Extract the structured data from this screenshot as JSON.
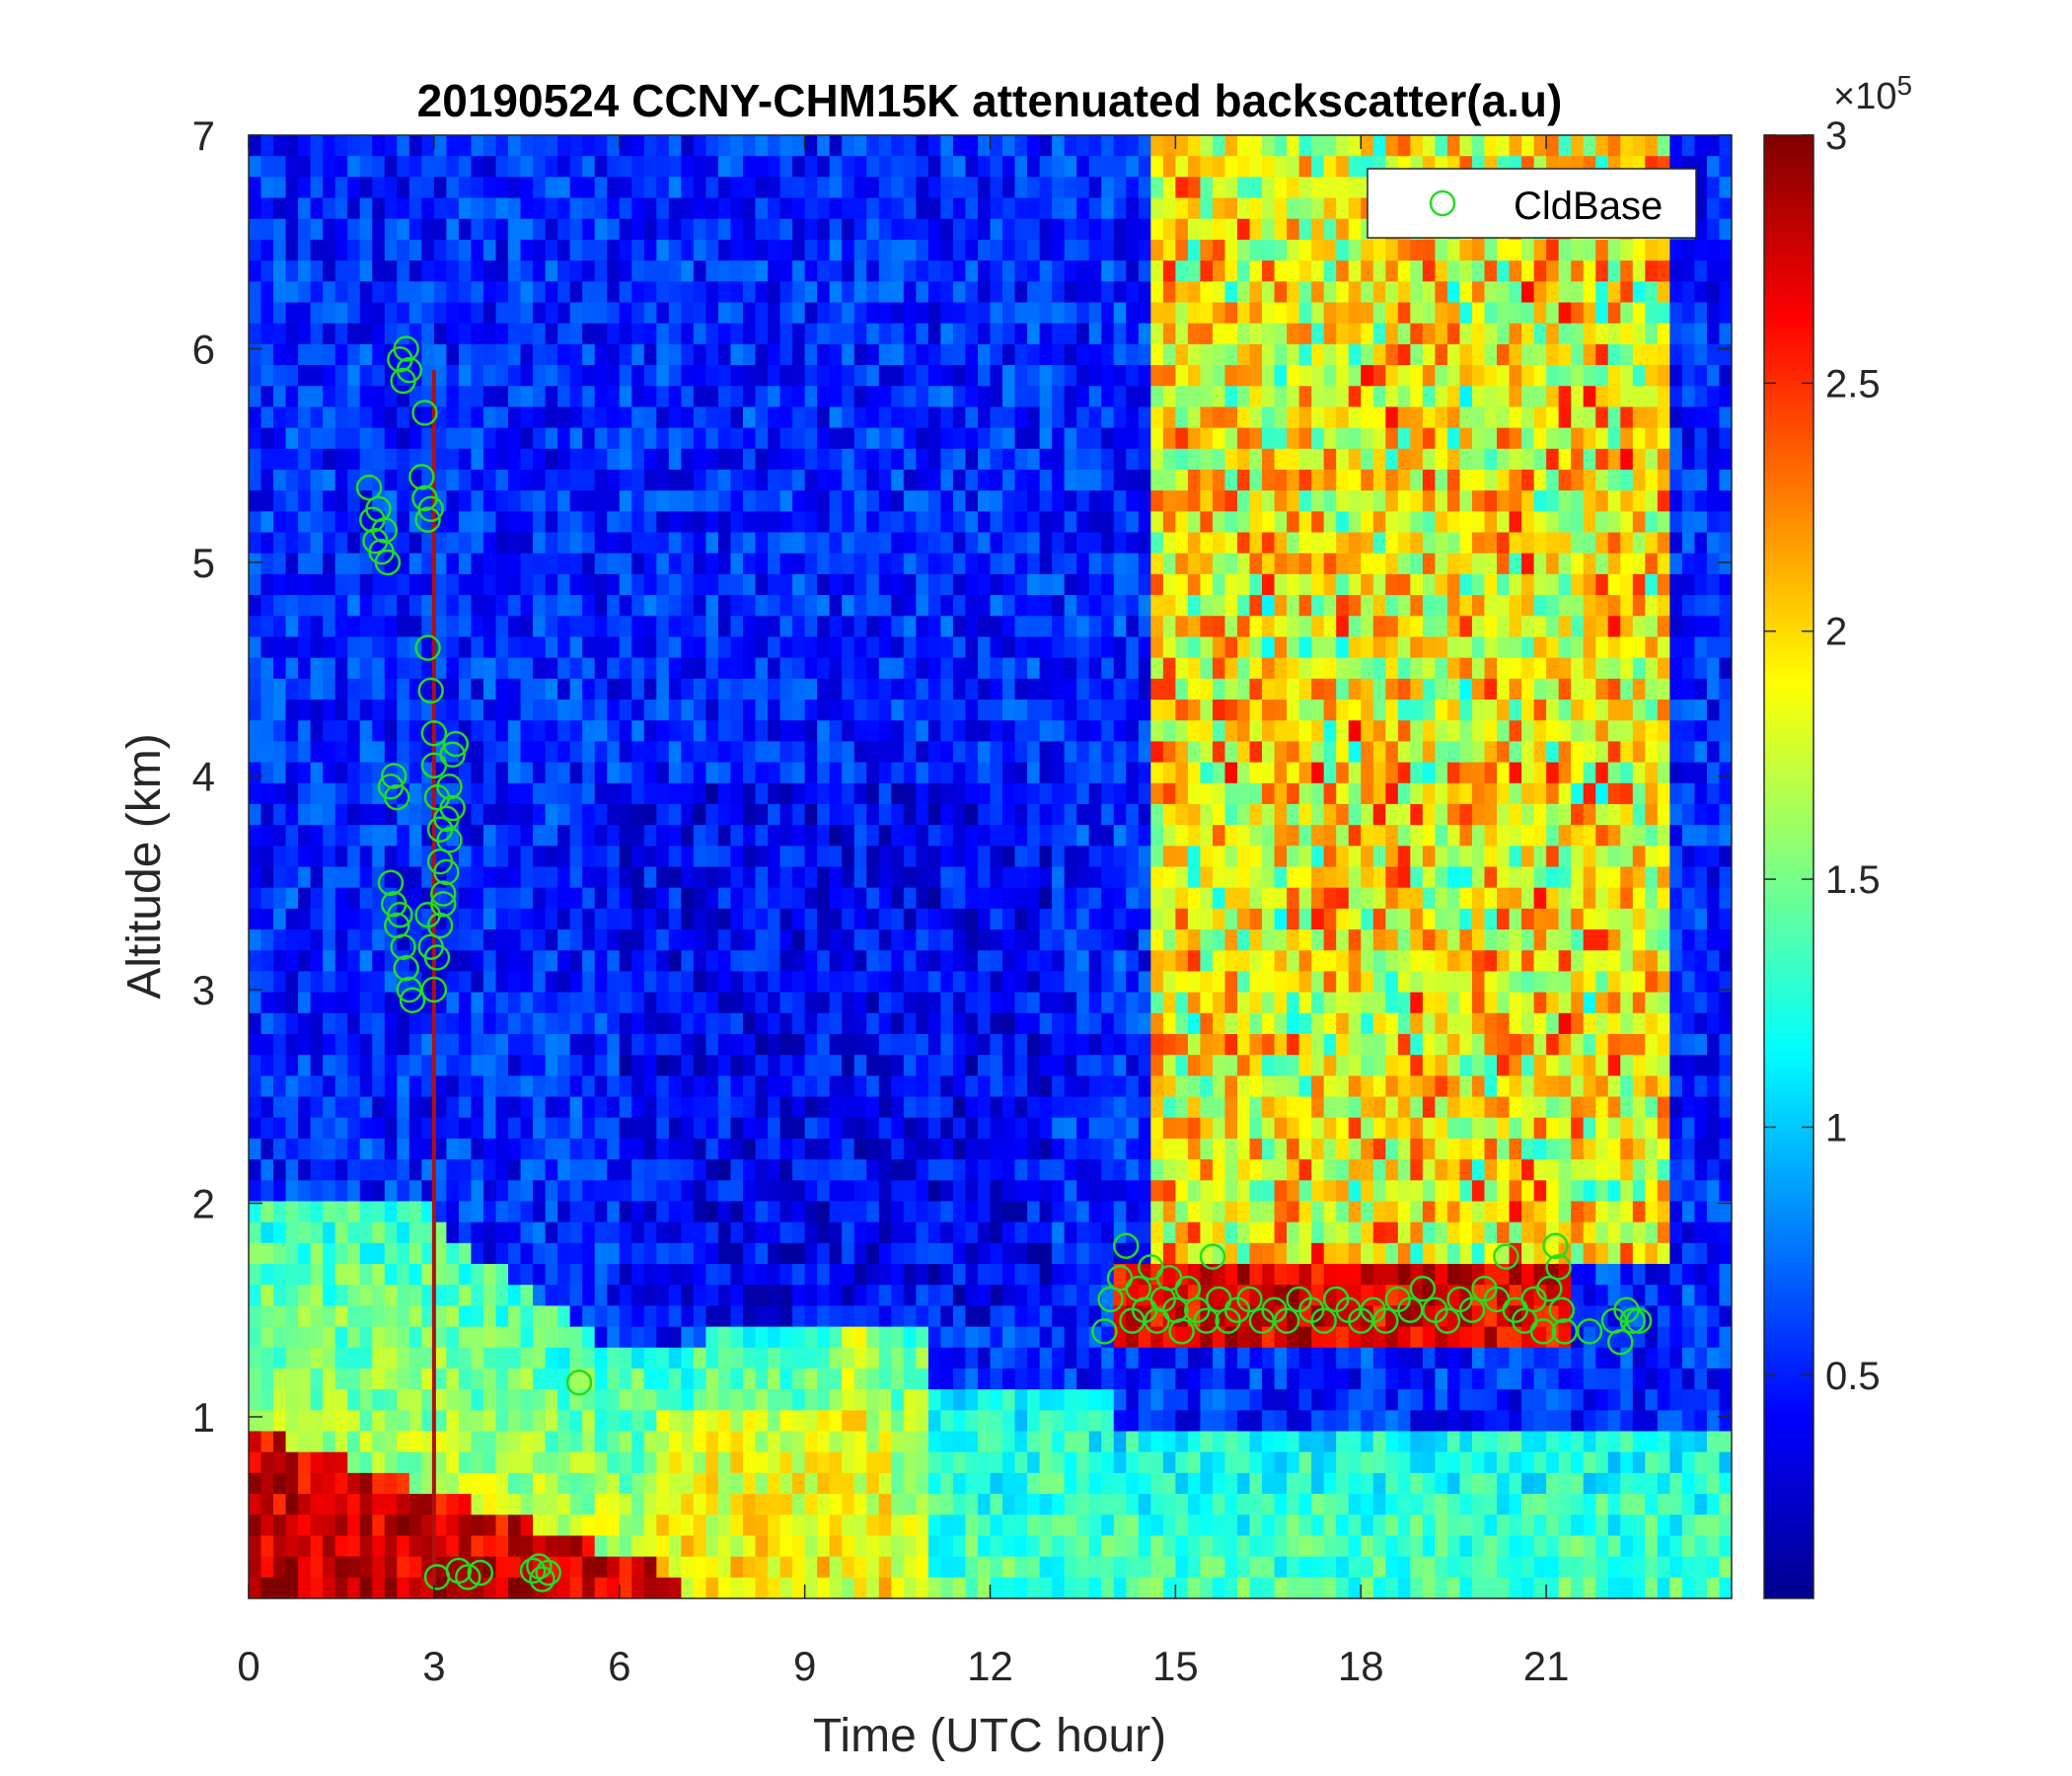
{
  "chart_data": {
    "type": "heatmap",
    "title": "20190524 CCNY-CHM15K attenuated backscatter(a.u)",
    "xlabel": "Time (UTC hour)",
    "ylabel": "Altitude (km)",
    "xlim": [
      0,
      24
    ],
    "ylim": [
      0.15,
      7
    ],
    "x_ticks": [
      0,
      3,
      6,
      9,
      12,
      15,
      18,
      21
    ],
    "x_tick_labels": [
      "0",
      "3",
      "6",
      "9",
      "12",
      "15",
      "18",
      "21"
    ],
    "y_ticks": [
      1,
      2,
      3,
      4,
      5,
      6,
      7
    ],
    "y_tick_labels": [
      "1",
      "2",
      "3",
      "4",
      "5",
      "6",
      "7"
    ],
    "colorbar": {
      "colormap": "jet",
      "clim": [
        0.05,
        3
      ],
      "ticks": [
        0.5,
        1,
        1.5,
        2,
        2.5,
        3
      ],
      "tick_labels": [
        "0.5",
        "1",
        "1.5",
        "2",
        "2.5",
        "3"
      ],
      "exponent_label": "×10^5",
      "multiplier": "×10",
      "exponent": "5"
    },
    "legend": {
      "placement": "top-right",
      "entries": [
        {
          "label": "CldBase",
          "marker": "circle",
          "color": "#22dd22"
        }
      ]
    },
    "series": [
      {
        "name": "CldBase",
        "marker": "circle",
        "color": "#22dd22",
        "points": [
          [
            1.95,
            5.35
          ],
          [
            2.0,
            5.2
          ],
          [
            2.05,
            5.1
          ],
          [
            2.1,
            5.25
          ],
          [
            2.15,
            5.05
          ],
          [
            2.2,
            5.15
          ],
          [
            2.25,
            5.0
          ],
          [
            2.45,
            5.95
          ],
          [
            2.5,
            5.85
          ],
          [
            2.55,
            6.0
          ],
          [
            2.6,
            5.9
          ],
          [
            2.85,
            5.7
          ],
          [
            2.8,
            5.4
          ],
          [
            2.85,
            5.3
          ],
          [
            2.9,
            5.2
          ],
          [
            2.95,
            5.25
          ],
          [
            2.3,
            3.95
          ],
          [
            2.35,
            4.0
          ],
          [
            2.4,
            3.9
          ],
          [
            2.3,
            3.5
          ],
          [
            2.35,
            3.4
          ],
          [
            2.4,
            3.3
          ],
          [
            2.45,
            3.35
          ],
          [
            2.5,
            3.2
          ],
          [
            2.55,
            3.1
          ],
          [
            2.6,
            3.0
          ],
          [
            2.65,
            2.95
          ],
          [
            2.9,
            4.6
          ],
          [
            2.95,
            4.4
          ],
          [
            3.0,
            4.2
          ],
          [
            3.0,
            4.05
          ],
          [
            3.05,
            3.9
          ],
          [
            3.1,
            3.75
          ],
          [
            3.1,
            3.6
          ],
          [
            3.15,
            3.45
          ],
          [
            3.1,
            3.3
          ],
          [
            3.05,
            3.15
          ],
          [
            3.0,
            3.0
          ],
          [
            2.95,
            3.2
          ],
          [
            2.9,
            3.35
          ],
          [
            3.2,
            3.8
          ],
          [
            3.25,
            3.95
          ],
          [
            3.3,
            4.1
          ],
          [
            3.35,
            4.15
          ],
          [
            3.3,
            3.85
          ],
          [
            3.25,
            3.7
          ],
          [
            3.2,
            3.55
          ],
          [
            3.15,
            3.4
          ],
          [
            3.05,
            0.25
          ],
          [
            3.4,
            0.28
          ],
          [
            3.55,
            0.25
          ],
          [
            3.75,
            0.27
          ],
          [
            4.6,
            0.28
          ],
          [
            4.7,
            0.3
          ],
          [
            4.75,
            0.24
          ],
          [
            4.85,
            0.27
          ],
          [
            5.35,
            1.16
          ],
          [
            13.85,
            1.4
          ],
          [
            13.95,
            1.55
          ],
          [
            14.1,
            1.65
          ],
          [
            14.2,
            1.8
          ],
          [
            14.3,
            1.45
          ],
          [
            14.4,
            1.6
          ],
          [
            14.5,
            1.5
          ],
          [
            14.6,
            1.7
          ],
          [
            14.7,
            1.45
          ],
          [
            14.8,
            1.55
          ],
          [
            14.9,
            1.65
          ],
          [
            15.0,
            1.5
          ],
          [
            15.1,
            1.4
          ],
          [
            15.2,
            1.6
          ],
          [
            15.35,
            1.5
          ],
          [
            15.5,
            1.45
          ],
          [
            15.6,
            1.75
          ],
          [
            15.7,
            1.55
          ],
          [
            15.85,
            1.45
          ],
          [
            16.0,
            1.5
          ],
          [
            16.2,
            1.55
          ],
          [
            16.4,
            1.45
          ],
          [
            16.6,
            1.5
          ],
          [
            16.8,
            1.45
          ],
          [
            17.0,
            1.55
          ],
          [
            17.2,
            1.5
          ],
          [
            17.4,
            1.45
          ],
          [
            17.6,
            1.55
          ],
          [
            17.8,
            1.5
          ],
          [
            18.0,
            1.45
          ],
          [
            18.2,
            1.5
          ],
          [
            18.4,
            1.45
          ],
          [
            18.6,
            1.55
          ],
          [
            18.8,
            1.5
          ],
          [
            19.0,
            1.6
          ],
          [
            19.2,
            1.5
          ],
          [
            19.4,
            1.45
          ],
          [
            19.6,
            1.55
          ],
          [
            19.8,
            1.5
          ],
          [
            20.0,
            1.6
          ],
          [
            20.2,
            1.55
          ],
          [
            20.35,
            1.75
          ],
          [
            20.5,
            1.5
          ],
          [
            20.65,
            1.45
          ],
          [
            20.8,
            1.55
          ],
          [
            20.95,
            1.4
          ],
          [
            21.05,
            1.6
          ],
          [
            21.15,
            1.8
          ],
          [
            21.2,
            1.7
          ],
          [
            21.25,
            1.5
          ],
          [
            21.3,
            1.4
          ],
          [
            21.7,
            1.4
          ],
          [
            22.1,
            1.45
          ],
          [
            22.2,
            1.35
          ],
          [
            22.3,
            1.5
          ],
          [
            22.4,
            1.45
          ],
          [
            22.5,
            1.45
          ]
        ]
      }
    ]
  }
}
